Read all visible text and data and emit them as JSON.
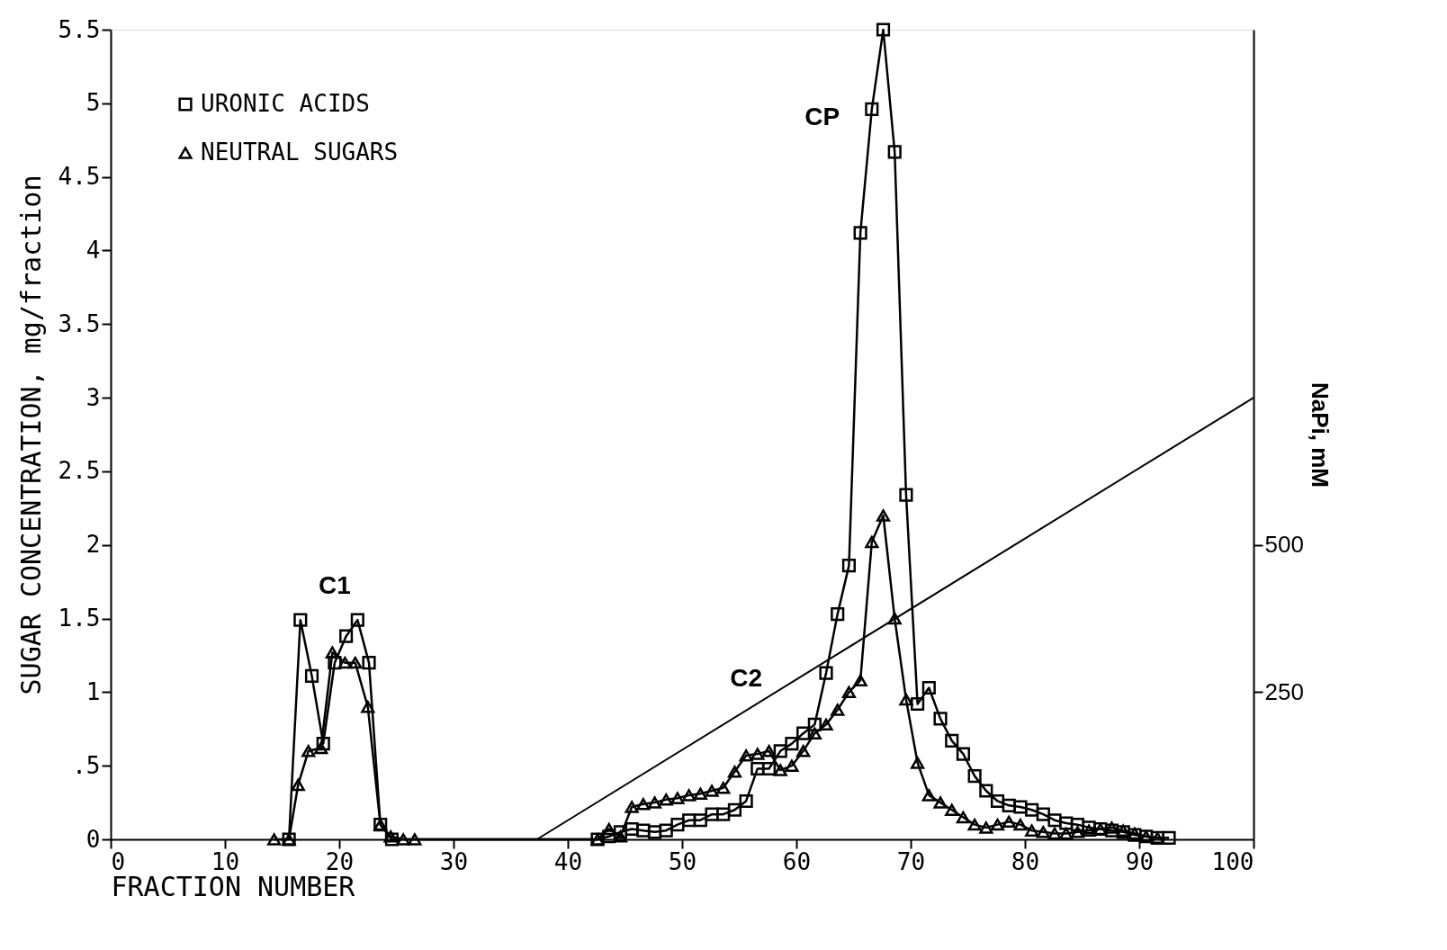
{
  "chart_data": {
    "type": "line",
    "xlabel": "FRACTION NUMBER",
    "ylabel": "SUGAR CONCENTRATION, mg/fraction",
    "y2label": "NaPi, mM",
    "xlim": [
      0,
      100
    ],
    "xticks": [
      0,
      10,
      20,
      30,
      40,
      50,
      60,
      70,
      80,
      90,
      100
    ],
    "ylim": [
      0,
      5.5
    ],
    "yticks": [
      {
        "value": 0,
        "label": "0"
      },
      {
        "value": 0.5,
        "label": ".5"
      },
      {
        "value": 1,
        "label": "1"
      },
      1.5,
      {
        "value": 2,
        "label": "2"
      },
      2.5,
      {
        "value": 3,
        "label": "3"
      },
      3.5,
      {
        "value": 4,
        "label": "4"
      },
      4.5,
      {
        "value": 5,
        "label": "5"
      },
      5.5
    ],
    "y2lim": [
      0,
      1375
    ],
    "y2ticks": [
      250,
      500
    ],
    "grid": false,
    "legend": "top left",
    "line_style": "solid",
    "series": [
      {
        "name": "URONIC ACIDS",
        "color": "#000000",
        "marker": "square",
        "x": [
          15.6,
          16.6,
          17.6,
          18.6,
          19.6,
          20.6,
          21.6,
          22.6,
          23.6,
          24.6,
          42.6,
          43.6,
          44.6,
          45.6,
          46.6,
          47.6,
          48.6,
          49.6,
          50.6,
          51.6,
          52.6,
          53.6,
          54.6,
          55.6,
          56.6,
          57.6,
          58.6,
          59.6,
          60.6,
          61.6,
          62.6,
          63.6,
          64.6,
          65.6,
          66.6,
          67.6,
          68.6,
          69.6,
          70.6,
          71.6,
          72.6,
          73.6,
          74.6,
          75.6,
          76.6,
          77.6,
          78.6,
          79.6,
          80.6,
          81.6,
          82.6,
          83.6,
          84.6,
          85.6,
          86.6,
          87.6,
          88.6,
          89.6,
          90.6,
          91.6,
          92.6
        ],
        "values": [
          0,
          1.49,
          1.11,
          0.65,
          1.2,
          1.38,
          1.49,
          1.2,
          0.1,
          0,
          0,
          0.02,
          0.05,
          0.07,
          0.06,
          0.05,
          0.06,
          0.1,
          0.13,
          0.13,
          0.17,
          0.17,
          0.2,
          0.26,
          0.48,
          0.48,
          0.6,
          0.65,
          0.72,
          0.78,
          1.13,
          1.53,
          1.86,
          4.12,
          4.96,
          5.5,
          4.67,
          2.34,
          0.92,
          1.03,
          0.82,
          0.67,
          0.58,
          0.43,
          0.33,
          0.26,
          0.23,
          0.22,
          0.2,
          0.17,
          0.13,
          0.11,
          0.1,
          0.08,
          0.07,
          0.06,
          0.05,
          0.03,
          0.02,
          0.01,
          0.01
        ]
      },
      {
        "name": "NEUTRAL SUGARS",
        "color": "#000000",
        "marker": "triangle",
        "x": [
          14.3,
          15.6,
          16.4,
          17.3,
          18.4,
          19.4,
          20.5,
          21.4,
          22.5,
          23.6,
          24.5,
          25.6,
          26.6,
          42.6,
          43.6,
          44.6,
          45.6,
          46.6,
          47.6,
          48.6,
          49.6,
          50.6,
          51.6,
          52.6,
          53.6,
          54.6,
          55.6,
          56.6,
          57.6,
          58.6,
          59.6,
          60.6,
          61.6,
          62.6,
          63.6,
          64.6,
          65.6,
          66.6,
          67.6,
          68.6,
          69.6,
          70.6,
          71.6,
          72.6,
          73.6,
          74.6,
          75.6,
          76.6,
          77.6,
          78.6,
          79.6,
          80.6,
          81.6,
          82.6,
          83.6,
          84.6,
          85.6,
          86.6,
          87.6,
          88.6,
          89.6,
          90.6,
          91.6
        ],
        "values": [
          0,
          0,
          0.37,
          0.6,
          0.62,
          1.27,
          1.2,
          1.2,
          0.9,
          0.1,
          0.02,
          0,
          0,
          0,
          0.07,
          0.02,
          0.22,
          0.24,
          0.25,
          0.27,
          0.28,
          0.3,
          0.31,
          0.33,
          0.35,
          0.46,
          0.57,
          0.58,
          0.6,
          0.47,
          0.5,
          0.6,
          0.72,
          0.78,
          0.88,
          1.0,
          1.08,
          2.02,
          2.2,
          1.5,
          0.95,
          0.52,
          0.3,
          0.25,
          0.2,
          0.15,
          0.1,
          0.08,
          0.1,
          0.12,
          0.1,
          0.06,
          0.05,
          0.04,
          0.04,
          0.05,
          0.06,
          0.07,
          0.08,
          0.06,
          0.04,
          0.02,
          0.01
        ]
      },
      {
        "color": "#000000",
        "marker": "none",
        "axis": "y2",
        "x": [
          37.3,
          100
        ],
        "values": [
          0,
          750
        ]
      }
    ],
    "annotations": [
      {
        "text": "C1",
        "x": 19.6,
        "y": 1.2
      },
      {
        "text": "C2",
        "x": 55.6,
        "y": 0.57
      },
      {
        "text": "CP",
        "x": 66.6,
        "y": 4.96
      }
    ]
  }
}
